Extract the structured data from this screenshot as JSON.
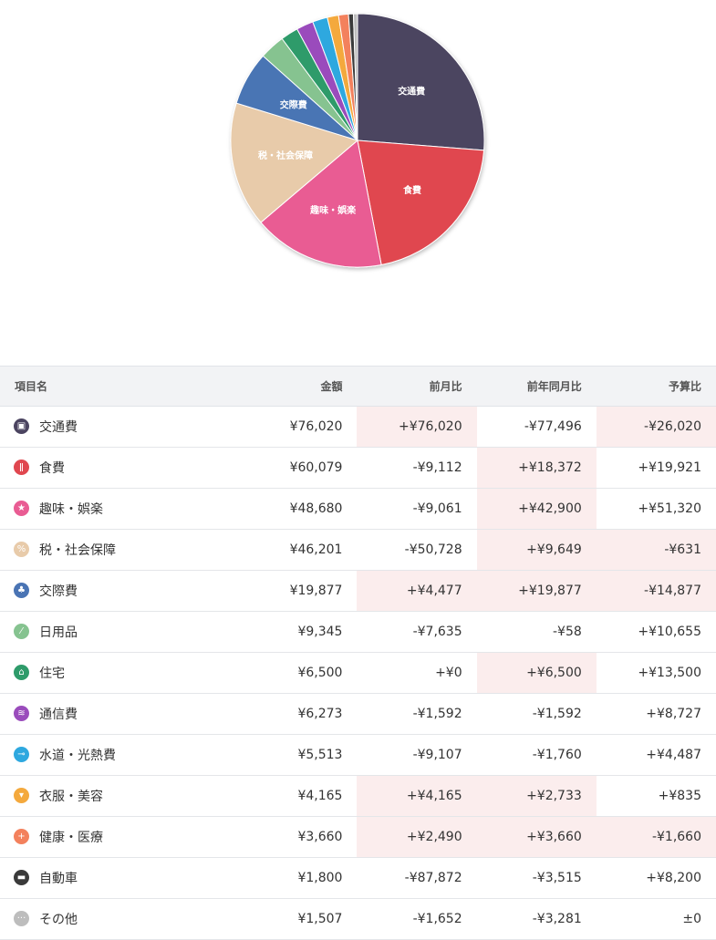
{
  "chart_data": {
    "type": "pie",
    "slices": [
      {
        "label": "交通費",
        "value": 76020,
        "color": "#4b4460"
      },
      {
        "label": "食費",
        "value": 60079,
        "color": "#e0474f"
      },
      {
        "label": "趣味・娯楽",
        "value": 48680,
        "color": "#e95c93"
      },
      {
        "label": "税・社会保障",
        "value": 46201,
        "color": "#e8cbaa"
      },
      {
        "label": "交際費",
        "value": 19877,
        "color": "#4a74b4"
      },
      {
        "label": "",
        "value": 9345,
        "color": "#86c390"
      },
      {
        "label": "",
        "value": 6500,
        "color": "#2e9b6a"
      },
      {
        "label": "",
        "value": 6273,
        "color": "#9a4cbc"
      },
      {
        "label": "",
        "value": 5513,
        "color": "#2ea8df"
      },
      {
        "label": "",
        "value": 4165,
        "color": "#f4a93d"
      },
      {
        "label": "",
        "value": 3660,
        "color": "#f3815d"
      },
      {
        "label": "",
        "value": 1800,
        "color": "#3a3a3a"
      },
      {
        "label": "",
        "value": 1507,
        "color": "#bdbdbd"
      }
    ]
  },
  "table": {
    "headers": [
      "項目名",
      "金額",
      "前月比",
      "前年同月比",
      "予算比"
    ],
    "rows": [
      {
        "name": "交通費",
        "icon": "train-icon",
        "glyph": "▣",
        "color": "#4b4460",
        "amount": "¥76,020",
        "mom": "+¥76,020",
        "yoy": "-¥77,496",
        "budget": "-¥26,020",
        "hl": [
          true,
          false,
          true
        ]
      },
      {
        "name": "食費",
        "icon": "utensils-icon",
        "glyph": "ǁ",
        "color": "#e0474f",
        "amount": "¥60,079",
        "mom": "-¥9,112",
        "yoy": "+¥18,372",
        "budget": "+¥19,921",
        "hl": [
          false,
          true,
          false
        ]
      },
      {
        "name": "趣味・娯楽",
        "icon": "star-icon",
        "glyph": "★",
        "color": "#e95c93",
        "amount": "¥48,680",
        "mom": "-¥9,061",
        "yoy": "+¥42,900",
        "budget": "+¥51,320",
        "hl": [
          false,
          true,
          false
        ]
      },
      {
        "name": "税・社会保障",
        "icon": "tax-icon",
        "glyph": "%",
        "color": "#e8cbaa",
        "amount": "¥46,201",
        "mom": "-¥50,728",
        "yoy": "+¥9,649",
        "budget": "-¥631",
        "hl": [
          false,
          true,
          true
        ]
      },
      {
        "name": "交際費",
        "icon": "people-icon",
        "glyph": "♣",
        "color": "#4a74b4",
        "amount": "¥19,877",
        "mom": "+¥4,477",
        "yoy": "+¥19,877",
        "budget": "-¥14,877",
        "hl": [
          true,
          true,
          true
        ]
      },
      {
        "name": "日用品",
        "icon": "pill-icon",
        "glyph": "⁄",
        "color": "#86c390",
        "amount": "¥9,345",
        "mom": "-¥7,635",
        "yoy": "-¥58",
        "budget": "+¥10,655",
        "hl": [
          false,
          false,
          false
        ]
      },
      {
        "name": "住宅",
        "icon": "house-icon",
        "glyph": "⌂",
        "color": "#2e9b6a",
        "amount": "¥6,500",
        "mom": "+¥0",
        "yoy": "+¥6,500",
        "budget": "+¥13,500",
        "hl": [
          false,
          true,
          false
        ]
      },
      {
        "name": "通信費",
        "icon": "antenna-icon",
        "glyph": "≋",
        "color": "#9a4cbc",
        "amount": "¥6,273",
        "mom": "-¥1,592",
        "yoy": "-¥1,592",
        "budget": "+¥8,727",
        "hl": [
          false,
          false,
          false
        ]
      },
      {
        "name": "水道・光熱費",
        "icon": "faucet-icon",
        "glyph": "⊸",
        "color": "#2ea8df",
        "amount": "¥5,513",
        "mom": "-¥9,107",
        "yoy": "-¥1,760",
        "budget": "+¥4,487",
        "hl": [
          false,
          false,
          false
        ]
      },
      {
        "name": "衣服・美容",
        "icon": "shirt-icon",
        "glyph": "▾",
        "color": "#f4a93d",
        "amount": "¥4,165",
        "mom": "+¥4,165",
        "yoy": "+¥2,733",
        "budget": "+¥835",
        "hl": [
          true,
          true,
          false
        ]
      },
      {
        "name": "健康・医療",
        "icon": "medical-cross-icon",
        "glyph": "+",
        "color": "#f3815d",
        "amount": "¥3,660",
        "mom": "+¥2,490",
        "yoy": "+¥3,660",
        "budget": "-¥1,660",
        "hl": [
          true,
          true,
          true
        ]
      },
      {
        "name": "自動車",
        "icon": "car-icon",
        "glyph": "▬",
        "color": "#3a3a3a",
        "amount": "¥1,800",
        "mom": "-¥87,872",
        "yoy": "-¥3,515",
        "budget": "+¥8,200",
        "hl": [
          false,
          false,
          false
        ]
      },
      {
        "name": "その他",
        "icon": "more-dots-icon",
        "glyph": "···",
        "color": "#bdbdbd",
        "amount": "¥1,507",
        "mom": "-¥1,652",
        "yoy": "-¥3,281",
        "budget": "±0",
        "hl": [
          false,
          false,
          false
        ]
      }
    ]
  }
}
